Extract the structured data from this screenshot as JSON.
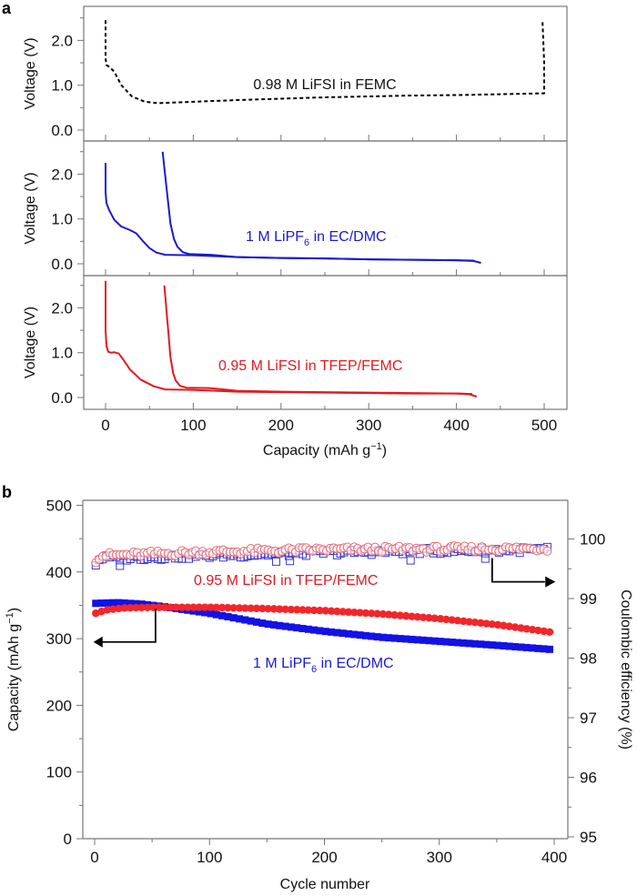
{
  "chart_data": [
    {
      "panel": "a",
      "type": "line",
      "xlabel": "Capacity (mAh g⁻¹)",
      "x_ticks": [
        0,
        100,
        200,
        300,
        400,
        500
      ],
      "xlim": [
        -25,
        525
      ],
      "subplots": [
        {
          "ylabel": "Voltage (V)",
          "y_ticks": [
            "0.0",
            "1.0",
            "2.0"
          ],
          "ylim": [
            -0.25,
            2.75
          ],
          "annotation": "0.98 M LiFSI in FEMC",
          "color": "#000000",
          "style": "dashed",
          "series": [
            {
              "name": "0.98 M LiFSI in FEMC",
              "x": [
                0,
                0,
                1,
                5,
                10,
                18,
                30,
                45,
                60,
                100,
                150,
                200,
                250,
                300,
                350,
                400,
                450,
                497,
                500,
                500,
                498
              ],
              "y": [
                2.45,
                1.6,
                1.45,
                1.4,
                1.3,
                1.0,
                0.75,
                0.63,
                0.6,
                0.63,
                0.67,
                0.7,
                0.73,
                0.75,
                0.77,
                0.78,
                0.8,
                0.82,
                0.82,
                1.5,
                2.45
              ]
            }
          ]
        },
        {
          "ylabel": "Voltage (V)",
          "y_ticks": [
            "0.0",
            "1.0",
            "2.0"
          ],
          "ylim": [
            -0.25,
            2.75
          ],
          "annotation_main": "1 M LiPF",
          "annotation_sub": "6",
          "annotation_tail": " in EC/DMC",
          "color": "#1a1ad0",
          "style": "solid",
          "series": [
            {
              "name": "discharge",
              "x": [
                0,
                0,
                1,
                4,
                10,
                18,
                28,
                35,
                42,
                50,
                58,
                68,
                100,
                150,
                200,
                250,
                300,
                350,
                400,
                420,
                428
              ],
              "y": [
                2.25,
                1.6,
                1.35,
                1.2,
                0.98,
                0.83,
                0.75,
                0.68,
                0.52,
                0.35,
                0.25,
                0.2,
                0.19,
                0.15,
                0.13,
                0.12,
                0.1,
                0.09,
                0.08,
                0.06,
                0.02
              ]
            },
            {
              "name": "charge",
              "x": [
                65,
                70,
                74,
                78,
                82,
                88,
                95,
                120,
                150,
                200,
                250,
                300,
                350,
                400,
                420
              ],
              "y": [
                2.5,
                1.6,
                0.9,
                0.55,
                0.38,
                0.26,
                0.22,
                0.2,
                0.15,
                0.13,
                0.12,
                0.1,
                0.09,
                0.08,
                0.07
              ]
            }
          ]
        },
        {
          "ylabel": "Voltage (V)",
          "y_ticks": [
            "0.0",
            "1.0",
            "2.0"
          ],
          "ylim": [
            -0.25,
            2.75
          ],
          "annotation": "0.95 M LiFSI in TFEP/FEMC",
          "color": "#e11a22",
          "style": "solid",
          "series": [
            {
              "name": "discharge",
              "x": [
                0,
                0,
                1,
                3,
                6,
                10,
                15,
                20,
                28,
                40,
                55,
                68,
                100,
                150,
                200,
                250,
                300,
                350,
                400,
                415,
                423
              ],
              "y": [
                2.6,
                1.5,
                1.15,
                1.02,
                1.0,
                1.01,
                0.98,
                0.85,
                0.62,
                0.4,
                0.25,
                0.18,
                0.17,
                0.13,
                0.12,
                0.11,
                0.1,
                0.09,
                0.09,
                0.07,
                0.02
              ]
            },
            {
              "name": "charge",
              "x": [
                67,
                71,
                74,
                77,
                80,
                85,
                92,
                118,
                150,
                200,
                250,
                300,
                350,
                400,
                418
              ],
              "y": [
                2.5,
                1.6,
                0.9,
                0.55,
                0.38,
                0.26,
                0.22,
                0.21,
                0.15,
                0.13,
                0.12,
                0.11,
                0.1,
                0.09,
                0.08
              ]
            }
          ]
        }
      ]
    },
    {
      "panel": "b",
      "type": "scatter",
      "xlabel": "Cycle number",
      "ylabel": "Capacity (mAh g⁻¹)",
      "ylabel_right": "Coulombic efficiency (%)",
      "x_ticks": [
        0,
        100,
        200,
        300,
        400
      ],
      "xlim": [
        -10,
        410
      ],
      "y_ticks": [
        0,
        100,
        200,
        300,
        400,
        500
      ],
      "ylim": [
        0,
        500
      ],
      "y_ticks_right": [
        95,
        96,
        97,
        98,
        99,
        100
      ],
      "ylim_right": [
        94.97,
        100.6
      ],
      "annotations": {
        "red": "0.95 M LiFSI in TFEP/FEMC",
        "blue_main": "1 M LiPF",
        "blue_sub": "6",
        "blue_tail": " in EC/DMC"
      },
      "colors": {
        "red": "#f2262a",
        "blue": "#1212e6",
        "red_open": "#e66c74",
        "blue_open": "#3a3ad6"
      },
      "series": [
        {
          "name": "0.95 M LiFSI in TFEP/FEMC capacity",
          "axis": "left",
          "marker": "filled-circle",
          "color": "red",
          "x_start": 1,
          "x_step": 5,
          "x_end": 396,
          "y_keypoints": {
            "x": [
              1,
              10,
              25,
              50,
              100,
              150,
              200,
              250,
              300,
              350,
              396
            ],
            "y": [
              338,
              343,
              346,
              347,
              347,
              345,
              342,
              337,
              330,
              321,
              310
            ]
          }
        },
        {
          "name": "1 M LiPF6 in EC/DMC capacity",
          "axis": "left",
          "marker": "filled-square",
          "color": "blue",
          "x_start": 1,
          "x_step": 5,
          "x_end": 396,
          "y_keypoints": {
            "x": [
              1,
              20,
              40,
              60,
              100,
              150,
              200,
              250,
              300,
              350,
              396
            ],
            "y": [
              353,
              354,
              352,
              348,
              338,
              322,
              311,
              302,
              296,
              290,
              284
            ]
          }
        },
        {
          "name": "0.95 M LiFSI in TFEP/FEMC CE",
          "axis": "right",
          "marker": "open-circle",
          "color": "red_open",
          "x_start": 1,
          "x_step": 3,
          "x_end": 396,
          "y_keypoints": {
            "x": [
              1,
              5,
              20,
              100,
              200,
              300,
              396
            ],
            "y": [
              99.65,
              99.72,
              99.73,
              99.78,
              99.82,
              99.83,
              99.84
            ]
          }
        },
        {
          "name": "1 M LiPF6 in EC/DMC CE",
          "axis": "right",
          "marker": "open-square",
          "color": "blue_open",
          "x_start": 1,
          "x_step": 3,
          "x_end": 396,
          "y_keypoints": {
            "x": [
              1,
              5,
              20,
              100,
              200,
              300,
              396
            ],
            "y": [
              99.58,
              99.68,
              99.68,
              99.72,
              99.77,
              99.8,
              99.82
            ]
          },
          "outliers": {
            "x": [
              22,
              158,
              170,
              275,
              340
            ],
            "y": [
              99.55,
              99.62,
              99.63,
              99.64,
              99.67
            ]
          }
        }
      ]
    }
  ]
}
